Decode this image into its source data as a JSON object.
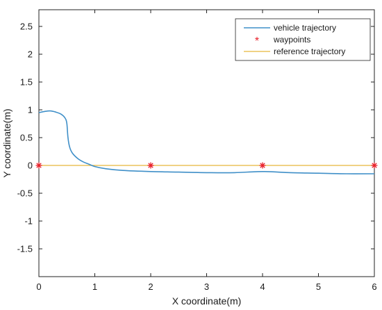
{
  "chart_data": {
    "type": "line",
    "title": "",
    "xlabel": "X coordinate(m)",
    "ylabel": "Y coordinate(m)",
    "xlim": [
      0,
      6
    ],
    "ylim": [
      -2,
      2.8
    ],
    "xticks": [
      0,
      1,
      2,
      3,
      4,
      5,
      6
    ],
    "xtick_labels": [
      "0",
      "1",
      "2",
      "3",
      "4",
      "5",
      "6"
    ],
    "yticks": [
      2.5,
      2,
      1.5,
      1,
      0.5,
      0,
      -0.5,
      -1,
      -1.5
    ],
    "ytick_labels": [
      "2.5",
      "2",
      "1.5",
      "1",
      "0.5",
      "0",
      "-0.5",
      "-1",
      "-1.5"
    ],
    "grid": false,
    "legend_position": "top-right",
    "colors": {
      "vehicle": "#3f8fc8",
      "waypoints": "#e8202a",
      "reference": "#e7b83a"
    },
    "series": [
      {
        "name": "vehicle trajectory",
        "style": "line",
        "x": [
          0.0,
          0.1,
          0.2,
          0.3,
          0.4,
          0.47,
          0.5,
          0.52,
          0.55,
          0.6,
          0.7,
          0.8,
          0.9,
          1.0,
          1.2,
          1.5,
          2.0,
          2.5,
          3.0,
          3.5,
          4.0,
          4.5,
          5.0,
          5.5,
          6.0
        ],
        "y": [
          0.95,
          0.97,
          0.98,
          0.96,
          0.92,
          0.85,
          0.75,
          0.5,
          0.33,
          0.22,
          0.12,
          0.06,
          0.02,
          -0.02,
          -0.06,
          -0.09,
          -0.11,
          -0.12,
          -0.13,
          -0.13,
          -0.11,
          -0.13,
          -0.14,
          -0.15,
          -0.15
        ]
      },
      {
        "name": "waypoints",
        "style": "marker",
        "x": [
          0,
          2,
          4,
          6
        ],
        "y": [
          0,
          0,
          0,
          0
        ]
      },
      {
        "name": "reference trajectory",
        "style": "line",
        "x": [
          0,
          6
        ],
        "y": [
          0,
          0
        ]
      }
    ]
  }
}
